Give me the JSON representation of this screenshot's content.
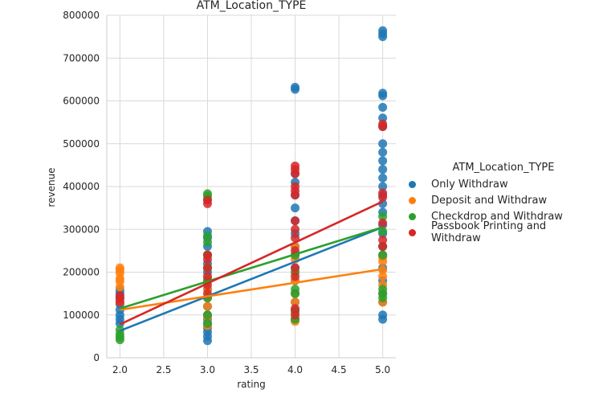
{
  "chart_data": {
    "type": "scatter",
    "title": "ATM_Location_TYPE",
    "xlabel": "rating",
    "ylabel": "revenue",
    "xlim": [
      1.85,
      5.15
    ],
    "ylim": [
      0,
      800000
    ],
    "xticks": [
      "2.0",
      "2.5",
      "3.0",
      "3.5",
      "4.0",
      "4.5",
      "5.0"
    ],
    "yticks": [
      "0",
      "100000",
      "200000",
      "300000",
      "400000",
      "500000",
      "600000",
      "700000",
      "800000"
    ],
    "grid": true,
    "legend_title": "ATM_Location_TYPE",
    "legend_position": "right",
    "series": [
      {
        "name": "Only Withdraw",
        "color": "#1f77b4",
        "regression": [
          [
            2.0,
            63000
          ],
          [
            5.0,
            305000
          ]
        ],
        "points": [
          [
            2,
            100000
          ],
          [
            2,
            112000
          ],
          [
            2,
            125000
          ],
          [
            2,
            140000
          ],
          [
            2,
            150000
          ],
          [
            2,
            158000
          ],
          [
            2,
            90000
          ],
          [
            2,
            80000
          ],
          [
            3,
            40000
          ],
          [
            3,
            50000
          ],
          [
            3,
            60000
          ],
          [
            3,
            70000
          ],
          [
            3,
            80000
          ],
          [
            3,
            90000
          ],
          [
            3,
            100000
          ],
          [
            3,
            120000
          ],
          [
            3,
            140000
          ],
          [
            3,
            160000
          ],
          [
            3,
            180000
          ],
          [
            3,
            200000
          ],
          [
            3,
            220000
          ],
          [
            3,
            240000
          ],
          [
            3,
            260000
          ],
          [
            3,
            280000
          ],
          [
            3,
            295000
          ],
          [
            4,
            90000
          ],
          [
            4,
            110000
          ],
          [
            4,
            130000
          ],
          [
            4,
            150000
          ],
          [
            4,
            180000
          ],
          [
            4,
            210000
          ],
          [
            4,
            240000
          ],
          [
            4,
            260000
          ],
          [
            4,
            290000
          ],
          [
            4,
            320000
          ],
          [
            4,
            350000
          ],
          [
            4,
            380000
          ],
          [
            4,
            410000
          ],
          [
            4,
            430000
          ],
          [
            4,
            627000
          ],
          [
            4,
            632000
          ],
          [
            5,
            90000
          ],
          [
            5,
            100000
          ],
          [
            5,
            130000
          ],
          [
            5,
            150000
          ],
          [
            5,
            180000
          ],
          [
            5,
            210000
          ],
          [
            5,
            240000
          ],
          [
            5,
            260000
          ],
          [
            5,
            290000
          ],
          [
            5,
            310000
          ],
          [
            5,
            340000
          ],
          [
            5,
            360000
          ],
          [
            5,
            380000
          ],
          [
            5,
            400000
          ],
          [
            5,
            420000
          ],
          [
            5,
            440000
          ],
          [
            5,
            460000
          ],
          [
            5,
            480000
          ],
          [
            5,
            500000
          ],
          [
            5,
            540000
          ],
          [
            5,
            560000
          ],
          [
            5,
            585000
          ],
          [
            5,
            612000
          ],
          [
            5,
            618000
          ],
          [
            5,
            750000
          ],
          [
            5,
            757000
          ],
          [
            5,
            764000
          ]
        ]
      },
      {
        "name": "Deposit and Withdraw",
        "color": "#ff7f0e",
        "regression": [
          [
            2.0,
            112000
          ],
          [
            5.0,
            207000
          ]
        ],
        "points": [
          [
            2,
            165000
          ],
          [
            2,
            178000
          ],
          [
            2,
            185000
          ],
          [
            2,
            198000
          ],
          [
            2,
            205000
          ],
          [
            2,
            210000
          ],
          [
            2,
            130000
          ],
          [
            3,
            75000
          ],
          [
            3,
            95000
          ],
          [
            3,
            120000
          ],
          [
            3,
            140000
          ],
          [
            3,
            160000
          ],
          [
            3,
            185000
          ],
          [
            3,
            210000
          ],
          [
            3,
            240000
          ],
          [
            4,
            85000
          ],
          [
            4,
            105000
          ],
          [
            4,
            130000
          ],
          [
            4,
            150000
          ],
          [
            4,
            180000
          ],
          [
            4,
            200000
          ],
          [
            4,
            230000
          ],
          [
            4,
            260000
          ],
          [
            5,
            130000
          ],
          [
            5,
            150000
          ],
          [
            5,
            170000
          ],
          [
            5,
            190000
          ],
          [
            5,
            205000
          ],
          [
            5,
            225000
          ],
          [
            5,
            235000
          ]
        ]
      },
      {
        "name": "Checkdrop and Withdraw",
        "color": "#2ca02c",
        "regression": [
          [
            2.0,
            115000
          ],
          [
            5.0,
            305000
          ]
        ],
        "points": [
          [
            2,
            42000
          ],
          [
            2,
            48000
          ],
          [
            2,
            55000
          ],
          [
            2,
            65000
          ],
          [
            3,
            80000
          ],
          [
            3,
            100000
          ],
          [
            3,
            140000
          ],
          [
            3,
            180000
          ],
          [
            3,
            210000
          ],
          [
            3,
            240000
          ],
          [
            3,
            270000
          ],
          [
            3,
            285000
          ],
          [
            3,
            370000
          ],
          [
            3,
            378000
          ],
          [
            3,
            383000
          ],
          [
            4,
            90000
          ],
          [
            4,
            110000
          ],
          [
            4,
            150000
          ],
          [
            4,
            160000
          ],
          [
            4,
            200000
          ],
          [
            4,
            240000
          ],
          [
            5,
            140000
          ],
          [
            5,
            150000
          ],
          [
            5,
            160000
          ],
          [
            5,
            240000
          ],
          [
            5,
            260000
          ],
          [
            5,
            295000
          ],
          [
            5,
            330000
          ]
        ]
      },
      {
        "name": "Passbook Printing and Withdraw",
        "color": "#d62728",
        "regression": [
          [
            2.0,
            78000
          ],
          [
            5.0,
            365000
          ]
        ],
        "points": [
          [
            2,
            130000
          ],
          [
            2,
            138000
          ],
          [
            2,
            145000
          ],
          [
            3,
            150000
          ],
          [
            3,
            170000
          ],
          [
            3,
            190000
          ],
          [
            3,
            210000
          ],
          [
            3,
            230000
          ],
          [
            3,
            240000
          ],
          [
            3,
            360000
          ],
          [
            3,
            368000
          ],
          [
            4,
            100000
          ],
          [
            4,
            115000
          ],
          [
            4,
            190000
          ],
          [
            4,
            210000
          ],
          [
            4,
            250000
          ],
          [
            4,
            280000
          ],
          [
            4,
            300000
          ],
          [
            4,
            320000
          ],
          [
            4,
            380000
          ],
          [
            4,
            390000
          ],
          [
            4,
            400000
          ],
          [
            4,
            430000
          ],
          [
            4,
            440000
          ],
          [
            4,
            448000
          ],
          [
            5,
            260000
          ],
          [
            5,
            275000
          ],
          [
            5,
            315000
          ],
          [
            5,
            375000
          ],
          [
            5,
            385000
          ],
          [
            5,
            540000
          ],
          [
            5,
            546000
          ]
        ]
      }
    ]
  }
}
